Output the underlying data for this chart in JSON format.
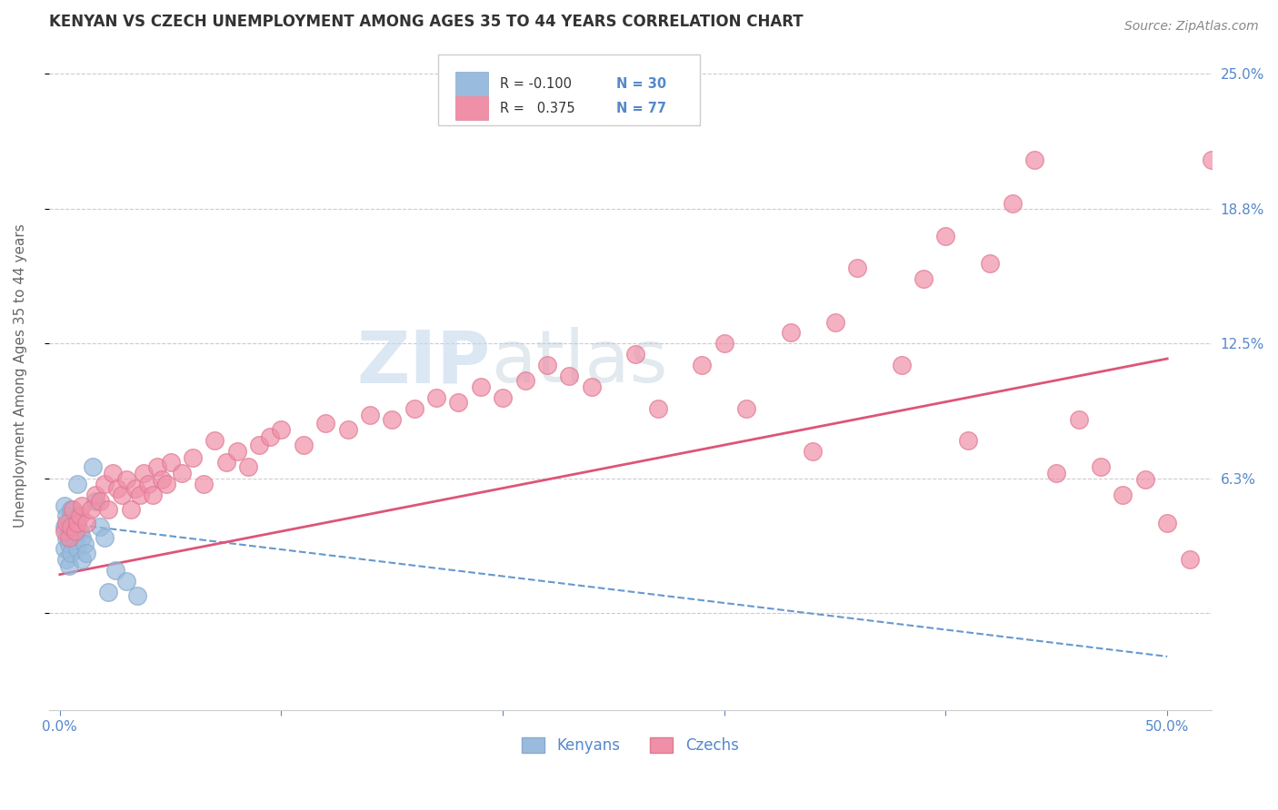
{
  "title": "KENYAN VS CZECH UNEMPLOYMENT AMONG AGES 35 TO 44 YEARS CORRELATION CHART",
  "source_text": "Source: ZipAtlas.com",
  "ylabel": "Unemployment Among Ages 35 to 44 years",
  "xlim": [
    -0.005,
    0.52
  ],
  "ylim": [
    -0.045,
    0.265
  ],
  "ytick_positions": [
    0.0,
    0.0625,
    0.125,
    0.1875,
    0.25
  ],
  "ytick_labels": [
    "",
    "6.3%",
    "12.5%",
    "18.8%",
    "25.0%"
  ],
  "xtick_positions": [
    0.0,
    0.1,
    0.2,
    0.3,
    0.4,
    0.5
  ],
  "xtick_labels": [
    "0.0%",
    "",
    "",
    "",
    "",
    "50.0%"
  ],
  "kenyan_color": "#99bbdd",
  "czech_color": "#f090a8",
  "kenyan_edge_color": "#88aacc",
  "czech_edge_color": "#e07890",
  "kenyan_trend_color": "#6699cc",
  "czech_trend_color": "#dd5577",
  "watermark_zip": "ZIP",
  "watermark_atlas": "atlas",
  "background_color": "#ffffff",
  "grid_color": "#cccccc",
  "title_color": "#333333",
  "axis_label_color": "#666666",
  "tick_color": "#5588cc",
  "legend_r1_text": "R = -0.100",
  "legend_n1_text": "N = 30",
  "legend_r2_text": "R =   0.375",
  "legend_n2_text": "N = 77",
  "kenyan_x": [
    0.002,
    0.002,
    0.002,
    0.003,
    0.003,
    0.003,
    0.004,
    0.004,
    0.004,
    0.005,
    0.005,
    0.005,
    0.006,
    0.007,
    0.007,
    0.008,
    0.008,
    0.009,
    0.01,
    0.01,
    0.011,
    0.012,
    0.015,
    0.016,
    0.018,
    0.02,
    0.022,
    0.025,
    0.03,
    0.035
  ],
  "kenyan_y": [
    0.05,
    0.04,
    0.03,
    0.045,
    0.035,
    0.025,
    0.042,
    0.032,
    0.022,
    0.048,
    0.038,
    0.028,
    0.036,
    0.044,
    0.034,
    0.06,
    0.03,
    0.038,
    0.035,
    0.025,
    0.032,
    0.028,
    0.068,
    0.052,
    0.04,
    0.035,
    0.01,
    0.02,
    0.015,
    0.008
  ],
  "czech_x": [
    0.002,
    0.003,
    0.004,
    0.005,
    0.006,
    0.007,
    0.008,
    0.009,
    0.01,
    0.012,
    0.014,
    0.016,
    0.018,
    0.02,
    0.022,
    0.024,
    0.026,
    0.028,
    0.03,
    0.032,
    0.034,
    0.036,
    0.038,
    0.04,
    0.042,
    0.044,
    0.046,
    0.048,
    0.05,
    0.055,
    0.06,
    0.065,
    0.07,
    0.075,
    0.08,
    0.085,
    0.09,
    0.095,
    0.1,
    0.11,
    0.12,
    0.13,
    0.14,
    0.15,
    0.16,
    0.17,
    0.18,
    0.19,
    0.2,
    0.21,
    0.22,
    0.23,
    0.24,
    0.26,
    0.27,
    0.29,
    0.3,
    0.31,
    0.33,
    0.34,
    0.35,
    0.36,
    0.38,
    0.39,
    0.4,
    0.41,
    0.42,
    0.43,
    0.44,
    0.45,
    0.46,
    0.47,
    0.48,
    0.49,
    0.5,
    0.51,
    0.52
  ],
  "czech_y": [
    0.038,
    0.042,
    0.035,
    0.04,
    0.048,
    0.038,
    0.042,
    0.045,
    0.05,
    0.042,
    0.048,
    0.055,
    0.052,
    0.06,
    0.048,
    0.065,
    0.058,
    0.055,
    0.062,
    0.048,
    0.058,
    0.055,
    0.065,
    0.06,
    0.055,
    0.068,
    0.062,
    0.06,
    0.07,
    0.065,
    0.072,
    0.06,
    0.08,
    0.07,
    0.075,
    0.068,
    0.078,
    0.082,
    0.085,
    0.078,
    0.088,
    0.085,
    0.092,
    0.09,
    0.095,
    0.1,
    0.098,
    0.105,
    0.1,
    0.108,
    0.115,
    0.11,
    0.105,
    0.12,
    0.095,
    0.115,
    0.125,
    0.095,
    0.13,
    0.075,
    0.135,
    0.16,
    0.115,
    0.155,
    0.175,
    0.08,
    0.162,
    0.19,
    0.21,
    0.065,
    0.09,
    0.068,
    0.055,
    0.062,
    0.042,
    0.025,
    0.21
  ],
  "kenyan_trend_x": [
    0.0,
    0.5
  ],
  "kenyan_trend_y": [
    0.042,
    -0.02
  ],
  "czech_trend_x": [
    0.0,
    0.5
  ],
  "czech_trend_y": [
    0.018,
    0.118
  ]
}
